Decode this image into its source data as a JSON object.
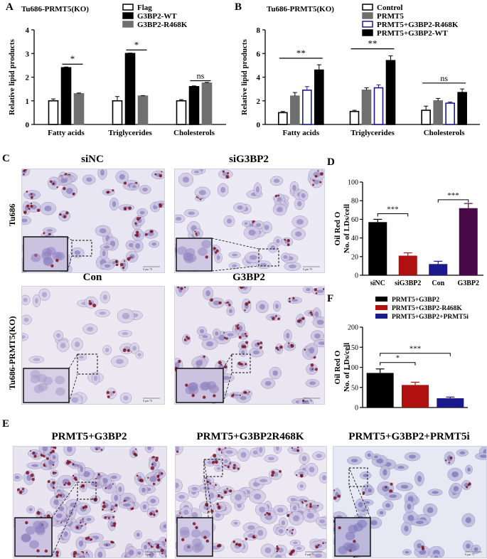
{
  "panels": {
    "A": "A",
    "B": "B",
    "C": "C",
    "D": "D",
    "E": "E",
    "F": "F"
  },
  "chart_data": [
    {
      "id": "A",
      "type": "bar",
      "title": "Tu686-PRMT5(KO)",
      "ylabel": "Relative lipid products",
      "ylim": [
        0,
        4
      ],
      "yticks": [
        "0",
        "1",
        "2",
        "3",
        "4"
      ],
      "categories": [
        "Fatty acids",
        "Triglycerides",
        "Cholesterols"
      ],
      "series": [
        {
          "name": "Flag",
          "values": [
            1.0,
            1.0,
            1.0
          ],
          "errors": [
            0.08,
            0.18,
            0.05
          ],
          "fill": "#ffffff",
          "stroke": "#000000"
        },
        {
          "name": "G3BP2-WT",
          "values": [
            2.4,
            3.0,
            1.6
          ],
          "errors": [
            0.03,
            0.02,
            0.03
          ],
          "fill": "#000000",
          "stroke": "#000000"
        },
        {
          "name": "G3BP2-R468K",
          "values": [
            1.3,
            1.2,
            1.75
          ],
          "errors": [
            0.03,
            0.02,
            0.03
          ],
          "fill": "#6f6f6f",
          "stroke": "#6f6f6f"
        }
      ],
      "annotations": [
        {
          "text": "*",
          "category": 0,
          "from": 1,
          "to": 2,
          "y": 2.55
        },
        {
          "text": "*",
          "category": 1,
          "from": 1,
          "to": 2,
          "y": 3.15
        },
        {
          "text": "ns",
          "category": 2,
          "from": 1,
          "to": 2,
          "y": 1.85
        }
      ]
    },
    {
      "id": "B",
      "type": "bar",
      "title": "Tu686-PRMT5(KO)",
      "ylabel": "Relative lipid products",
      "ylim": [
        0,
        8
      ],
      "yticks": [
        "0",
        "2",
        "4",
        "6",
        "8"
      ],
      "categories": [
        "Fatty acids",
        "Triglycerides",
        "Cholesterols"
      ],
      "series": [
        {
          "name": "Control",
          "values": [
            1.0,
            1.1,
            1.2
          ],
          "errors": [
            0.1,
            0.1,
            0.35
          ],
          "fill": "#ffffff",
          "stroke": "#000000"
        },
        {
          "name": "PRMT5",
          "values": [
            2.4,
            2.9,
            2.0
          ],
          "errors": [
            0.3,
            0.2,
            0.2
          ],
          "fill": "#6f6f6f",
          "stroke": "#6f6f6f"
        },
        {
          "name": "PRMT5+G3BP2-R468K",
          "values": [
            2.9,
            3.1,
            1.8
          ],
          "errors": [
            0.3,
            0.25,
            0.1
          ],
          "fill": "#ffffff",
          "stroke": "#1a1a8c"
        },
        {
          "name": "PRMT5+G3BP2-WT",
          "values": [
            4.6,
            5.4,
            2.7
          ],
          "errors": [
            0.45,
            0.4,
            0.3
          ],
          "fill": "#000000",
          "stroke": "#000000"
        }
      ],
      "annotations": [
        {
          "text": "**",
          "category": 0,
          "from": 0,
          "to": 3,
          "y": 5.6
        },
        {
          "text": "**",
          "category": 1,
          "from": 0,
          "to": 3,
          "y": 6.4
        },
        {
          "text": "ns",
          "category": 2,
          "from": 0,
          "to": 3,
          "y": 3.5
        }
      ]
    },
    {
      "id": "D",
      "type": "bar",
      "ylabel": "Oil Red O",
      "ylabel2": "No. of LDs/cell",
      "ylim": [
        0,
        100
      ],
      "yticks": [
        "0",
        "20",
        "40",
        "60",
        "80",
        "100"
      ],
      "categories": [
        "siNC",
        "siG3BP2",
        "Con",
        "G3BP2"
      ],
      "values": [
        57,
        21,
        12,
        72
      ],
      "errors": [
        3,
        3,
        3,
        5
      ],
      "colors": [
        "#000000",
        "#b01010",
        "#1a1a8c",
        "#4a0a4a"
      ],
      "annotations": [
        {
          "text": "***",
          "from": 0,
          "to": 1,
          "y": 66
        },
        {
          "text": "***",
          "from": 2,
          "to": 3,
          "y": 81
        }
      ]
    },
    {
      "id": "F",
      "type": "bar",
      "ylabel": "Oil Red O",
      "ylabel2": "No. of LDs/cell",
      "ylim": [
        0,
        200
      ],
      "yticks": [
        "0",
        "50",
        "100",
        "150",
        "200"
      ],
      "categories": [
        "PRMT5+G3BP2",
        "PRMT5+G3BP2-R468K",
        "PRMT5+G3BP2+PRMT5i"
      ],
      "values": [
        86,
        56,
        23
      ],
      "errors": [
        10,
        7,
        3
      ],
      "colors": [
        "#000000",
        "#b01010",
        "#1a1a8c"
      ],
      "legend": [
        "PRMT5+G3BP2",
        "PRMT5+G3BP2-R468K",
        "PRMT5+G3BP2+PRMT5i"
      ],
      "annotations": [
        {
          "text": "*",
          "from": 0,
          "to": 1,
          "y": 112
        },
        {
          "text": "***",
          "from": 0,
          "to": 2,
          "y": 135
        }
      ]
    }
  ],
  "micrographs": {
    "C": {
      "col_titles": [
        "siNC",
        "siG3BP2"
      ],
      "row2_titles": [
        "Con",
        "G3BP2"
      ],
      "row_labels": [
        "Tu686",
        "Tu686-PRMT5(KO)"
      ],
      "scale_text": "0   μm   75"
    },
    "E": {
      "titles": [
        "PRMT5+G3BP2",
        "PRMT5+G3BP2R468K",
        "PRMT5+G3BP2+PRMT5i"
      ],
      "scale_text": "0   μm   75"
    }
  }
}
